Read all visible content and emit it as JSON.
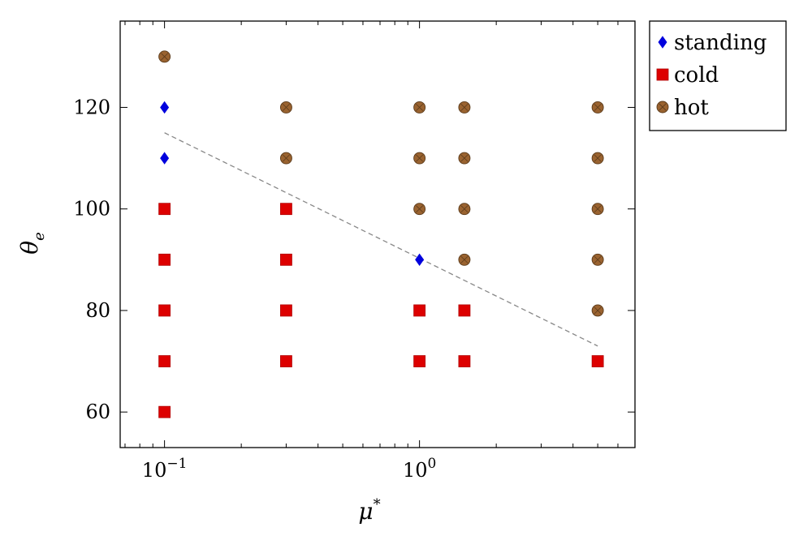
{
  "chart_data": {
    "type": "scatter",
    "xscale": "log",
    "xlim": [
      0.067,
      7.0
    ],
    "ylim": [
      53,
      137
    ],
    "xlabel": "μ",
    "xlabel_sup": "*",
    "ylabel": "θ",
    "ylabel_sub": "e",
    "yticks": [
      60,
      80,
      100,
      120
    ],
    "xticks": [
      {
        "value": 0.1,
        "base": "10",
        "exp": "−1"
      },
      {
        "value": 1,
        "base": "10",
        "exp": "0"
      }
    ],
    "legend_position": "outside-top-right",
    "series": [
      {
        "name": "standing",
        "marker": "diamond",
        "color": "#0000dd",
        "points": [
          [
            0.1,
            120
          ],
          [
            0.1,
            110
          ],
          [
            1,
            90
          ]
        ]
      },
      {
        "name": "cold",
        "marker": "square",
        "color": "#dd0000",
        "points": [
          [
            0.1,
            100
          ],
          [
            0.1,
            90
          ],
          [
            0.1,
            80
          ],
          [
            0.1,
            70
          ],
          [
            0.1,
            60
          ],
          [
            0.3,
            100
          ],
          [
            0.3,
            90
          ],
          [
            0.3,
            80
          ],
          [
            0.3,
            70
          ],
          [
            1,
            80
          ],
          [
            1,
            70
          ],
          [
            1.5,
            80
          ],
          [
            1.5,
            70
          ],
          [
            5,
            70
          ]
        ]
      },
      {
        "name": "hot",
        "marker": "circle",
        "color": "#9a6330",
        "points": [
          [
            0.1,
            130
          ],
          [
            0.3,
            120
          ],
          [
            0.3,
            110
          ],
          [
            1,
            120
          ],
          [
            1,
            110
          ],
          [
            1,
            100
          ],
          [
            1.5,
            120
          ],
          [
            1.5,
            110
          ],
          [
            1.5,
            100
          ],
          [
            1.5,
            90
          ],
          [
            5,
            120
          ],
          [
            5,
            110
          ],
          [
            5,
            100
          ],
          [
            5,
            90
          ],
          [
            5,
            80
          ]
        ]
      }
    ],
    "boundary_line": {
      "name": "dashed-boundary",
      "color": "#888888",
      "points": [
        [
          0.1,
          115
        ],
        [
          5,
          73
        ]
      ]
    }
  }
}
